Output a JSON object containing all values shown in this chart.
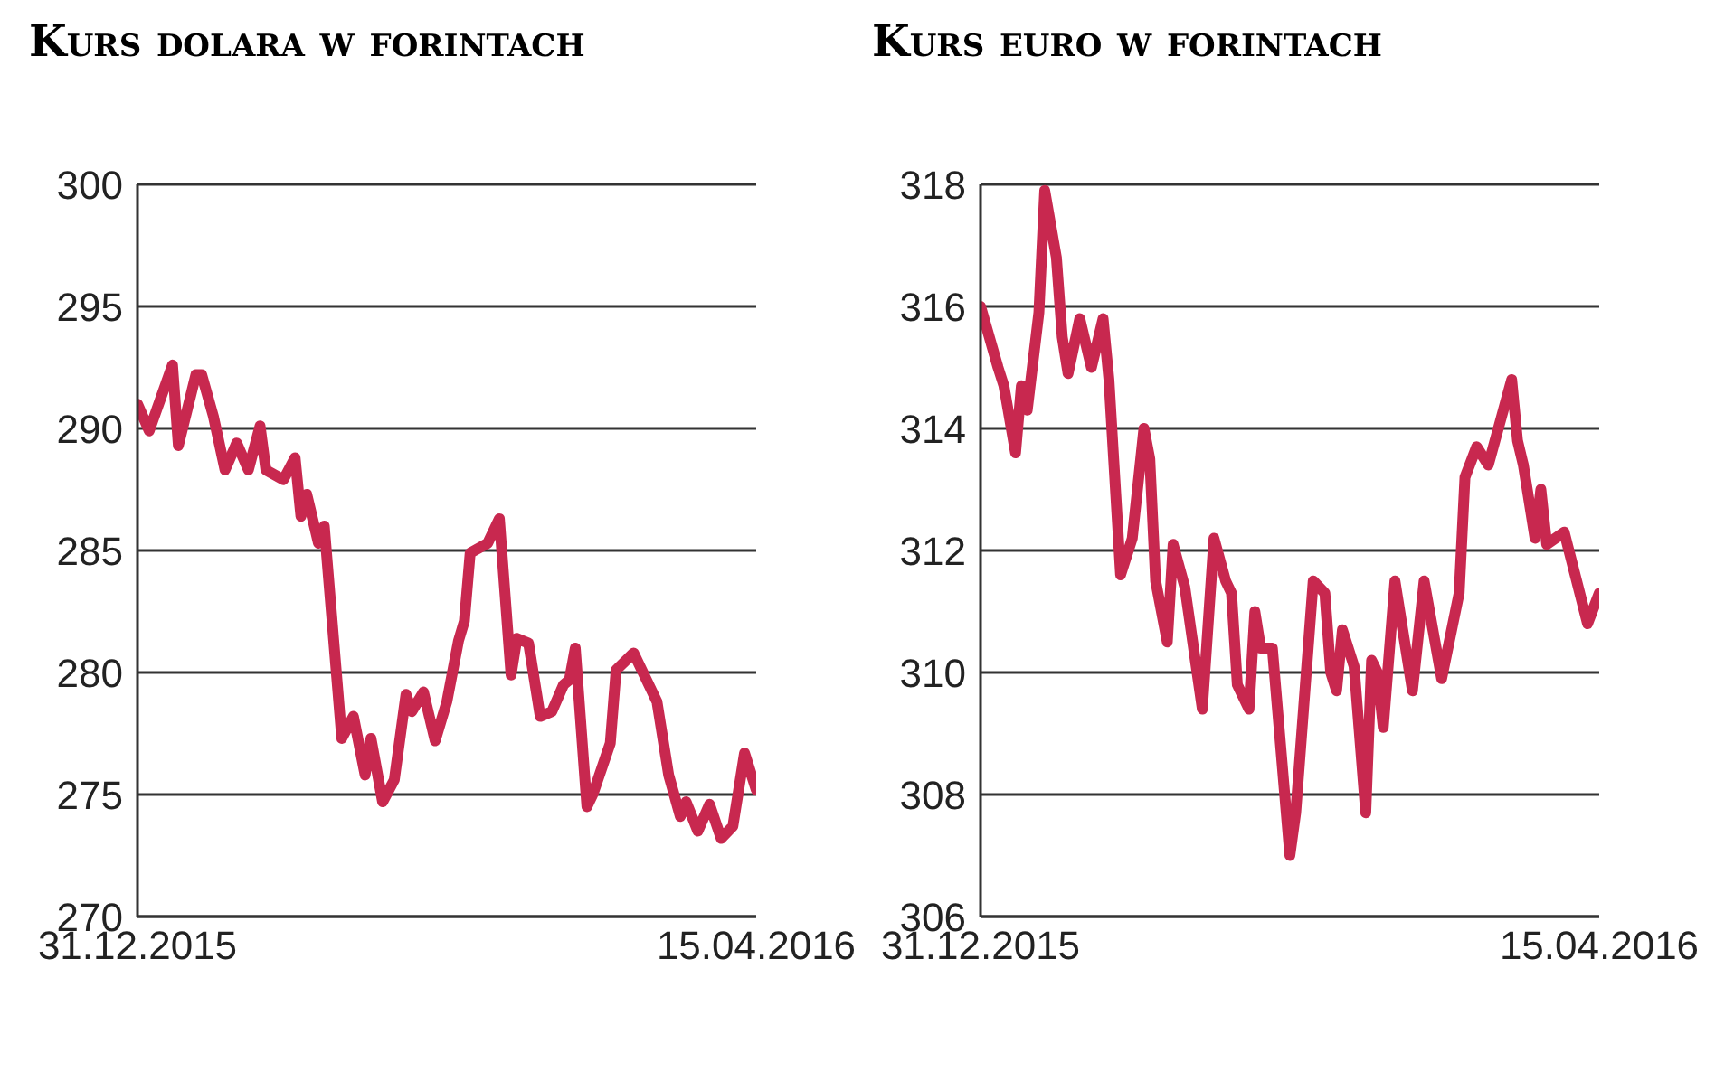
{
  "chart_data": [
    {
      "type": "line",
      "title": "Kurs dolara w forintach",
      "color": "#c8284f",
      "marker": "none",
      "grid": "y",
      "x": [
        "2015-12-31",
        "2016-01-02",
        "2016-01-06",
        "2016-01-07",
        "2016-01-10",
        "2016-01-11",
        "2016-01-13",
        "2016-01-15",
        "2016-01-17",
        "2016-01-19",
        "2016-01-21",
        "2016-01-22",
        "2016-01-25",
        "2016-01-27",
        "2016-01-28",
        "2016-01-29",
        "2016-01-31",
        "2016-02-01",
        "2016-02-04",
        "2016-02-06",
        "2016-02-08",
        "2016-02-09",
        "2016-02-11",
        "2016-02-13",
        "2016-02-15",
        "2016-02-16",
        "2016-02-18",
        "2016-02-20",
        "2016-02-22",
        "2016-02-24",
        "2016-02-25",
        "2016-02-26",
        "2016-02-29",
        "2016-03-02",
        "2016-03-04",
        "2016-03-05",
        "2016-03-07",
        "2016-03-09",
        "2016-03-11",
        "2016-03-13",
        "2016-03-14",
        "2016-03-15",
        "2016-03-17",
        "2016-03-18",
        "2016-03-21",
        "2016-03-22",
        "2016-03-25",
        "2016-03-29",
        "2016-03-31",
        "2016-04-02",
        "2016-04-03",
        "2016-04-05",
        "2016-04-07",
        "2016-04-09",
        "2016-04-11",
        "2016-04-13",
        "2016-04-15"
      ],
      "values": [
        291.0,
        289.9,
        292.6,
        289.3,
        292.2,
        292.2,
        290.5,
        288.3,
        289.4,
        288.3,
        290.1,
        288.3,
        287.9,
        288.8,
        286.4,
        287.3,
        285.3,
        286.0,
        277.3,
        278.2,
        275.8,
        277.3,
        274.7,
        275.6,
        279.1,
        278.4,
        279.2,
        277.2,
        278.8,
        281.3,
        282.1,
        284.9,
        285.3,
        286.3,
        279.9,
        281.4,
        281.2,
        278.2,
        278.4,
        279.5,
        279.7,
        281.0,
        274.5,
        275.0,
        277.1,
        280.1,
        280.8,
        278.8,
        275.8,
        274.1,
        274.7,
        273.5,
        274.6,
        273.2,
        273.7,
        276.7,
        275.2
      ],
      "xlim": [
        "2015-12-31",
        "2016-04-15"
      ],
      "xticks": [
        {
          "value": "2015-12-31",
          "label": "31.12.2015"
        },
        {
          "value": "2016-04-15",
          "label": "15.04.2016"
        }
      ],
      "ylim": [
        270,
        300
      ],
      "yticks": [
        270,
        275,
        280,
        285,
        290,
        295,
        300
      ]
    },
    {
      "type": "line",
      "title": "Kurs euro w forintach",
      "color": "#c8284f",
      "marker": "none",
      "grid": "y",
      "x": [
        "2015-12-31",
        "2016-01-03",
        "2016-01-04",
        "2016-01-06",
        "2016-01-07",
        "2016-01-08",
        "2016-01-10",
        "2016-01-11",
        "2016-01-13",
        "2016-01-14",
        "2016-01-15",
        "2016-01-17",
        "2016-01-19",
        "2016-01-21",
        "2016-01-22",
        "2016-01-24",
        "2016-01-26",
        "2016-01-28",
        "2016-01-29",
        "2016-01-30",
        "2016-02-01",
        "2016-02-02",
        "2016-02-04",
        "2016-02-07",
        "2016-02-09",
        "2016-02-11",
        "2016-02-12",
        "2016-02-13",
        "2016-02-15",
        "2016-02-16",
        "2016-02-17",
        "2016-02-19",
        "2016-02-22",
        "2016-02-23",
        "2016-02-26",
        "2016-02-28",
        "2016-02-29",
        "2016-03-01",
        "2016-03-02",
        "2016-03-04",
        "2016-03-06",
        "2016-03-07",
        "2016-03-08",
        "2016-03-09",
        "2016-03-11",
        "2016-03-14",
        "2016-03-16",
        "2016-03-19",
        "2016-03-22",
        "2016-03-23",
        "2016-03-25",
        "2016-03-27",
        "2016-03-29",
        "2016-03-31",
        "2016-04-01",
        "2016-04-02",
        "2016-04-04",
        "2016-04-05",
        "2016-04-06",
        "2016-04-09",
        "2016-04-13",
        "2016-04-15"
      ],
      "values": [
        316.0,
        315.0,
        314.7,
        313.6,
        314.7,
        314.3,
        315.9,
        317.9,
        316.8,
        315.5,
        314.9,
        315.8,
        315.0,
        315.8,
        314.8,
        311.6,
        312.2,
        314.0,
        313.5,
        311.5,
        310.5,
        312.1,
        311.4,
        309.4,
        312.2,
        311.5,
        311.3,
        309.8,
        309.4,
        311.0,
        310.4,
        310.4,
        307.0,
        307.7,
        311.5,
        311.3,
        310.0,
        309.7,
        310.7,
        310.1,
        307.7,
        310.2,
        310.0,
        309.1,
        311.5,
        309.7,
        311.5,
        309.9,
        311.3,
        313.2,
        313.7,
        313.4,
        314.1,
        314.8,
        313.8,
        313.4,
        312.2,
        313.0,
        312.1,
        312.3,
        310.8,
        311.3
      ],
      "xlim": [
        "2015-12-31",
        "2016-04-15"
      ],
      "xticks": [
        {
          "value": "2015-12-31",
          "label": "31.12.2015"
        },
        {
          "value": "2016-04-15",
          "label": "15.04.2016"
        }
      ],
      "ylim": [
        306,
        318
      ],
      "yticks": [
        306,
        308,
        310,
        312,
        314,
        316,
        318
      ]
    }
  ]
}
